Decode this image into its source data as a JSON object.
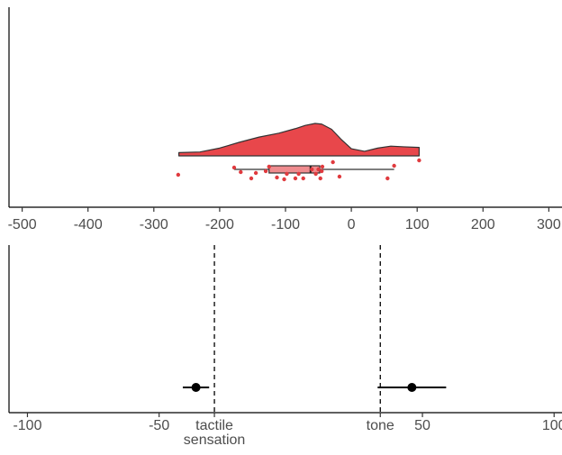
{
  "chart_data": [
    {
      "type": "raincloud",
      "xlim": [
        -520,
        320
      ],
      "x_ticks": [
        -500,
        -400,
        -300,
        -200,
        -100,
        0,
        100,
        200,
        300
      ],
      "x_tick_labels": [
        "-500",
        "-400",
        "-300",
        "-200",
        "-100",
        "0",
        "100",
        "200",
        "300"
      ],
      "grid": false,
      "colors": {
        "fill": "#e8474b",
        "points": "#e03a3e",
        "outline": "#333333"
      },
      "density": {
        "x": [
          -262,
          -230,
          -200,
          -170,
          -140,
          -110,
          -85,
          -70,
          -55,
          -45,
          -30,
          -15,
          0,
          20,
          40,
          60,
          80,
          103
        ],
        "density": [
          0.1,
          0.12,
          0.24,
          0.42,
          0.58,
          0.7,
          0.84,
          0.94,
          1.0,
          0.98,
          0.82,
          0.5,
          0.22,
          0.14,
          0.24,
          0.3,
          0.28,
          0.26
        ]
      },
      "boxplot": {
        "whisker_low": -178,
        "q1": -125,
        "median": -62,
        "q3": -48,
        "whisker_high": 65
      },
      "points": [
        {
          "x": -263,
          "j": 0.6
        },
        {
          "x": -178,
          "j": -0.2
        },
        {
          "x": -168,
          "j": 0.3
        },
        {
          "x": -152,
          "j": 1.0
        },
        {
          "x": -145,
          "j": 0.4
        },
        {
          "x": -130,
          "j": 0.2
        },
        {
          "x": -125,
          "j": -0.3
        },
        {
          "x": -113,
          "j": 0.9
        },
        {
          "x": -102,
          "j": 1.1
        },
        {
          "x": -98,
          "j": 0.5
        },
        {
          "x": -85,
          "j": 1.0
        },
        {
          "x": -80,
          "j": 0.5
        },
        {
          "x": -73,
          "j": 1.0
        },
        {
          "x": -60,
          "j": 0.0
        },
        {
          "x": -54,
          "j": 0.5
        },
        {
          "x": -50,
          "j": 0.0
        },
        {
          "x": -47,
          "j": 1.0
        },
        {
          "x": -45,
          "j": 0.2
        },
        {
          "x": -44,
          "j": -0.3
        },
        {
          "x": -28,
          "j": -0.8
        },
        {
          "x": -18,
          "j": 0.8
        },
        {
          "x": 55,
          "j": 1.0
        },
        {
          "x": 65,
          "j": -0.4
        },
        {
          "x": 103,
          "j": -1.0
        }
      ]
    },
    {
      "type": "pointrange",
      "xlim": [
        -107,
        103
      ],
      "x_ticks": [
        -100,
        -50,
        50,
        100
      ],
      "x_tick_labels": [
        "-100",
        "-50",
        "50",
        "100"
      ],
      "reference_lines": [
        {
          "x": -29,
          "label": [
            "tactile",
            "sensation"
          ]
        },
        {
          "x": 34,
          "label": [
            "tone"
          ]
        }
      ],
      "grid": false,
      "series": [
        {
          "points": [
            {
              "x": -36,
              "low": -41,
              "high": -31
            },
            {
              "x": 46,
              "low": 33,
              "high": 59
            }
          ]
        }
      ]
    }
  ]
}
